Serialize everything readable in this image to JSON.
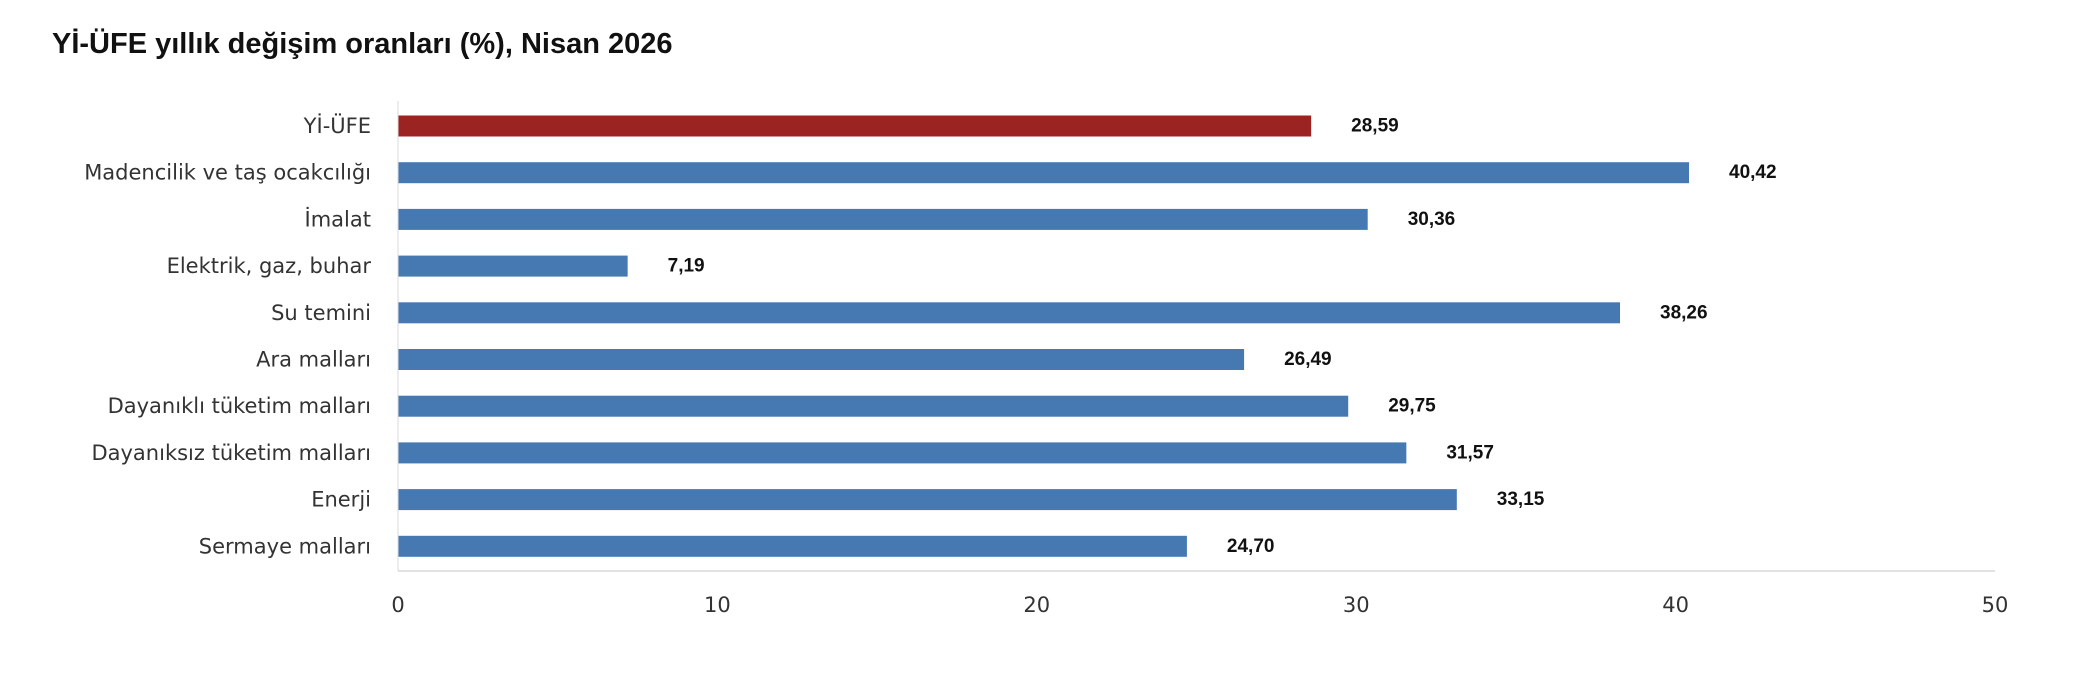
{
  "chart_data": {
    "type": "bar",
    "orientation": "horizontal",
    "title": "Yİ-ÜFE yıllık değişim oranları (%), Nisan 2026",
    "categories": [
      "Yİ-ÜFE",
      "Madencilik ve taş ocakcılığı",
      "İmalat",
      "Elektrik, gaz, buhar",
      "Su temini",
      "Ara malları",
      "Dayanıklı tüketim malları",
      "Dayanıksız tüketim malları",
      "Enerji",
      "Sermaye malları"
    ],
    "values": [
      28.59,
      40.42,
      30.36,
      7.19,
      38.26,
      26.49,
      29.75,
      31.57,
      33.15,
      24.7
    ],
    "value_labels": [
      "28,59",
      "40,42",
      "30,36",
      "7,19",
      "38,26",
      "26,49",
      "29,75",
      "31,57",
      "33,15",
      "24,70"
    ],
    "bar_colors": [
      "#9b2423",
      "#4679b2",
      "#4679b2",
      "#4679b2",
      "#4679b2",
      "#4679b2",
      "#4679b2",
      "#4679b2",
      "#4679b2",
      "#4679b2"
    ],
    "xlim": [
      0,
      50
    ],
    "xticks": [
      0,
      10,
      20,
      30,
      40,
      50
    ],
    "xlabel": "",
    "ylabel": "",
    "grid": false,
    "legend": "none"
  }
}
